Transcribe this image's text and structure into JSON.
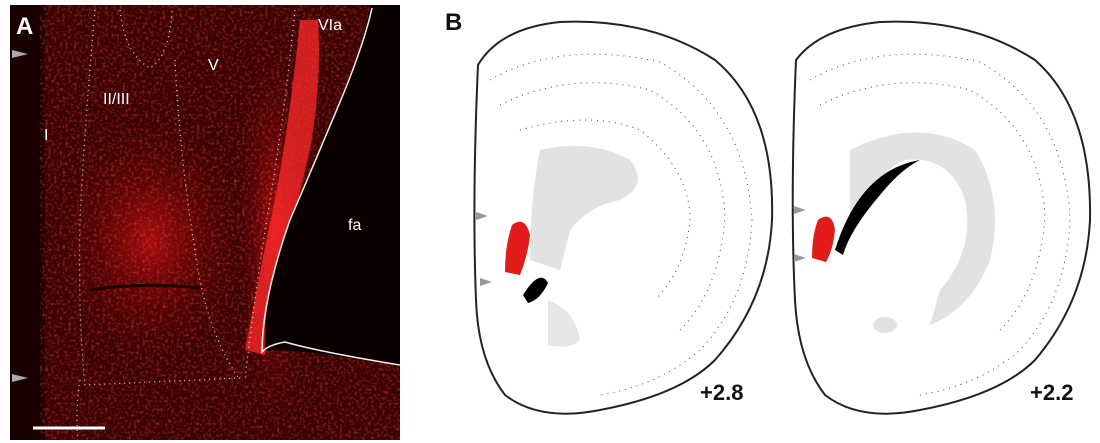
{
  "panel_a": {
    "label": "A",
    "layers": [
      "I",
      "II/III",
      "V",
      "VIa"
    ],
    "tract": "fa"
  },
  "panel_b": {
    "label": "B",
    "sections": [
      "+2.8",
      "+2.2"
    ]
  }
}
